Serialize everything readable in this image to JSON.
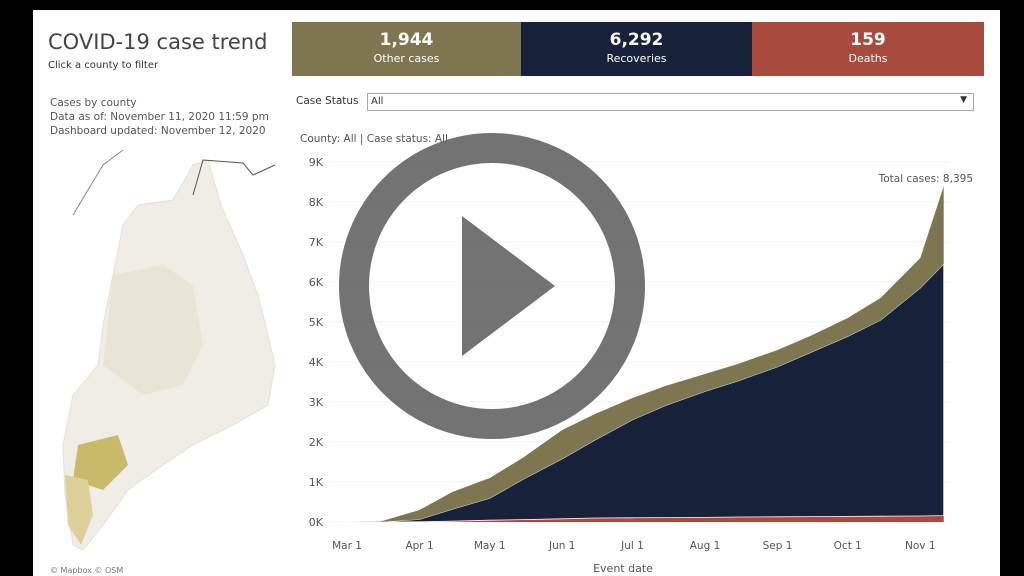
{
  "header": {
    "title": "COVID-19 case trend",
    "subtitle": "Click a county to filter"
  },
  "map_panel": {
    "lines": [
      "Cases by county",
      "Data as of: November 11, 2020 11:59 pm",
      "Dashboard updated: November 12, 2020"
    ],
    "credit": "© Mapbox © OSM"
  },
  "kpis": [
    {
      "value": "1,944",
      "label": "Other cases",
      "color": "#7d7650"
    },
    {
      "value": "6,292",
      "label": "Recoveries",
      "color": "#17223a"
    },
    {
      "value": "159",
      "label": "Deaths",
      "color": "#a94a3f"
    }
  ],
  "filter": {
    "label": "Case Status",
    "value": "All"
  },
  "filter_summary": "County: All | Case status: All",
  "chart": {
    "type": "area",
    "stacked": true,
    "annotation": "Total cases: 8,395",
    "x_label": "Event date",
    "x": [
      "Mar 1",
      "Mar 15",
      "Apr 1",
      "Apr 15",
      "May 1",
      "May 15",
      "Jun 1",
      "Jun 15",
      "Jul 1",
      "Jul 15",
      "Aug 1",
      "Aug 15",
      "Sep 1",
      "Sep 15",
      "Oct 1",
      "Oct 15",
      "Nov 1",
      "Nov 11"
    ],
    "xticks": [
      "Mar 1",
      "Apr 1",
      "May 1",
      "Jun 1",
      "Jul 1",
      "Aug 1",
      "Sep 1",
      "Oct 1",
      "Nov 1"
    ],
    "ylim": [
      0,
      9000
    ],
    "yticks": [
      {
        "value": 0,
        "label": "0K"
      },
      {
        "value": 1000,
        "label": "1K"
      },
      {
        "value": 2000,
        "label": "2K"
      },
      {
        "value": 3000,
        "label": "3K"
      },
      {
        "value": 4000,
        "label": "4K"
      },
      {
        "value": 5000,
        "label": "5K"
      },
      {
        "value": 6000,
        "label": "6K"
      },
      {
        "value": 7000,
        "label": "7K"
      },
      {
        "value": 8000,
        "label": "8K"
      },
      {
        "value": 9000,
        "label": "9K"
      }
    ],
    "series": [
      {
        "name": "Deaths",
        "color": "#a94a3f",
        "values": [
          0,
          0,
          5,
          20,
          45,
          60,
          80,
          100,
          105,
          110,
          115,
          125,
          130,
          135,
          140,
          145,
          150,
          159
        ]
      },
      {
        "name": "Recoveries",
        "color": "#17223a",
        "values": [
          0,
          0,
          60,
          300,
          550,
          1000,
          1500,
          1950,
          2450,
          2800,
          3150,
          3400,
          3750,
          4100,
          4500,
          4900,
          5700,
          6292
        ]
      },
      {
        "name": "Other cases",
        "color": "#7d7650",
        "values": [
          0,
          5,
          235,
          430,
          505,
          540,
          720,
          650,
          545,
          490,
          435,
          425,
          420,
          415,
          460,
          555,
          750,
          1944
        ]
      }
    ]
  }
}
